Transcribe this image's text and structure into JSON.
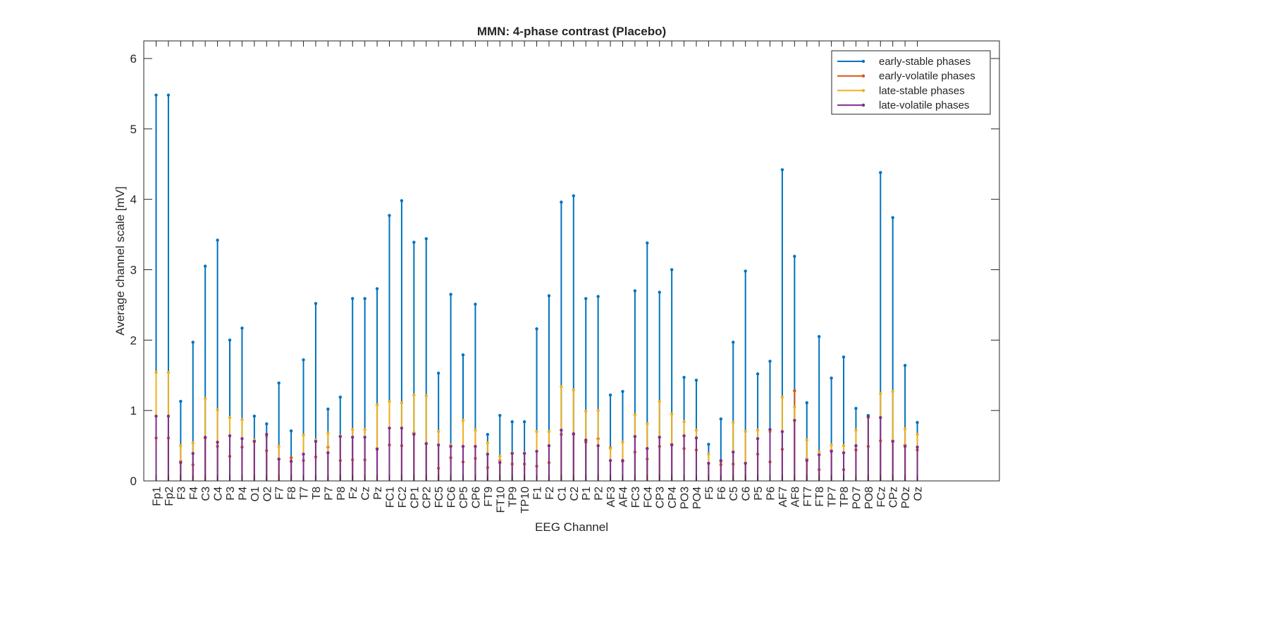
{
  "chart_data": {
    "type": "line",
    "title": "MMN: 4-phase contrast (Placebo)",
    "xlabel": "EEG Channel",
    "ylabel": "Average channel scale [mV]",
    "ylim": [
      0,
      6.25
    ],
    "yticks": [
      0,
      1,
      2,
      3,
      4,
      5,
      6
    ],
    "grid": false,
    "legend_position": "top-right",
    "categories": [
      "Fp1",
      "Fp2",
      "F3",
      "F4",
      "C3",
      "C4",
      "P3",
      "P4",
      "O1",
      "O2",
      "F7",
      "F8",
      "T7",
      "T8",
      "P7",
      "P8",
      "Fz",
      "Cz",
      "Pz",
      "FC1",
      "FC2",
      "CP1",
      "CP2",
      "FC5",
      "FC6",
      "CP5",
      "CP6",
      "FT9",
      "FT10",
      "TP9",
      "TP10",
      "F1",
      "F2",
      "C1",
      "C2",
      "P1",
      "P2",
      "AF3",
      "AF4",
      "FC3",
      "FC4",
      "CP3",
      "CP4",
      "PO3",
      "PO4",
      "F5",
      "F6",
      "C5",
      "C6",
      "P5",
      "P6",
      "AF7",
      "AF8",
      "FT7",
      "FT8",
      "TP7",
      "TP8",
      "PO7",
      "PO8",
      "FCz",
      "CPz",
      "POz",
      "Oz"
    ],
    "series": [
      {
        "name": "early-stable phases",
        "color": "#0072BD",
        "values": [
          5.48,
          5.48,
          1.13,
          1.97,
          3.05,
          3.42,
          2.0,
          2.17,
          0.92,
          0.81,
          1.39,
          0.71,
          1.72,
          2.52,
          1.02,
          1.19,
          2.59,
          2.59,
          2.73,
          3.77,
          3.98,
          3.39,
          3.44,
          1.53,
          2.65,
          1.79,
          2.51,
          0.66,
          0.93,
          0.84,
          0.84,
          2.16,
          2.63,
          3.96,
          4.05,
          2.59,
          2.62,
          1.22,
          1.27,
          2.7,
          3.38,
          2.68,
          3.0,
          1.47,
          1.43,
          0.52,
          0.88,
          1.97,
          2.98,
          1.52,
          1.7,
          4.42,
          3.19,
          1.11,
          2.05,
          1.46,
          1.76,
          1.03,
          0.93,
          4.38,
          3.74,
          1.64,
          0.83
        ]
      },
      {
        "name": "early-volatile phases",
        "color": "#D95319",
        "values": [
          0.61,
          0.61,
          0.28,
          0.23,
          0.61,
          0.49,
          0.35,
          0.48,
          0.57,
          0.43,
          0.31,
          0.33,
          0.29,
          0.34,
          0.48,
          0.29,
          0.3,
          0.3,
          0.46,
          0.51,
          0.5,
          0.68,
          0.53,
          0.18,
          0.33,
          0.27,
          0.32,
          0.19,
          0.29,
          0.24,
          0.24,
          0.21,
          0.26,
          0.66,
          0.66,
          0.55,
          0.6,
          0.47,
          0.28,
          0.41,
          0.31,
          0.49,
          0.52,
          0.46,
          0.44,
          0.25,
          0.23,
          0.24,
          0.25,
          0.38,
          0.27,
          0.45,
          1.28,
          0.31,
          0.16,
          0.43,
          0.16,
          0.44,
          0.49,
          0.57,
          0.57,
          0.51,
          0.44
        ]
      },
      {
        "name": "late-stable phases",
        "color": "#EDB120",
        "values": [
          1.54,
          1.54,
          0.5,
          0.54,
          1.17,
          1.01,
          0.9,
          0.87,
          0.58,
          0.63,
          0.49,
          0.27,
          0.65,
          0.58,
          0.68,
          0.64,
          0.73,
          0.73,
          1.08,
          1.13,
          1.11,
          1.22,
          1.21,
          0.7,
          0.51,
          0.86,
          0.72,
          0.54,
          0.35,
          0.4,
          0.4,
          0.7,
          0.7,
          1.34,
          1.29,
          0.99,
          1.0,
          0.46,
          0.55,
          0.94,
          0.81,
          1.13,
          0.95,
          0.84,
          0.72,
          0.38,
          0.27,
          0.83,
          0.7,
          0.72,
          0.7,
          1.19,
          1.05,
          0.58,
          0.41,
          0.51,
          0.5,
          0.72,
          0.9,
          1.24,
          1.27,
          0.74,
          0.66
        ]
      },
      {
        "name": "late-volatile phases",
        "color": "#7E2F8E",
        "values": [
          0.92,
          0.92,
          0.26,
          0.39,
          0.62,
          0.55,
          0.64,
          0.6,
          0.56,
          0.66,
          0.31,
          0.28,
          0.38,
          0.56,
          0.4,
          0.63,
          0.62,
          0.62,
          0.45,
          0.75,
          0.75,
          0.66,
          0.53,
          0.51,
          0.49,
          0.49,
          0.49,
          0.38,
          0.26,
          0.39,
          0.39,
          0.42,
          0.5,
          0.72,
          0.67,
          0.58,
          0.5,
          0.29,
          0.29,
          0.63,
          0.46,
          0.62,
          0.51,
          0.64,
          0.61,
          0.25,
          0.29,
          0.41,
          0.25,
          0.6,
          0.73,
          0.7,
          0.86,
          0.29,
          0.37,
          0.42,
          0.4,
          0.5,
          0.91,
          0.9,
          0.56,
          0.49,
          0.48
        ]
      }
    ]
  }
}
